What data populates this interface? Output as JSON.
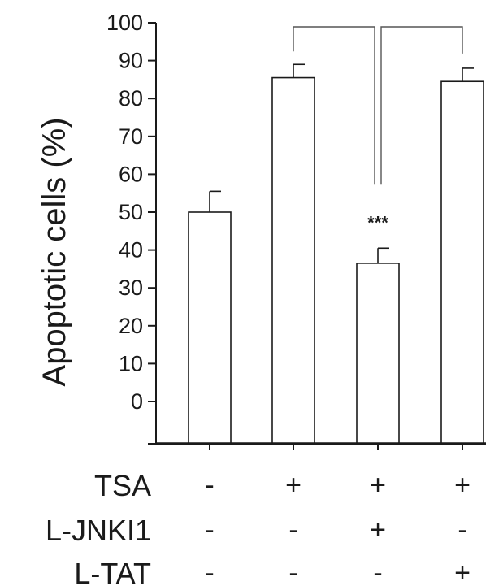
{
  "chart_data": {
    "type": "bar",
    "ylabel": "Apoptotic cells (%)",
    "ylim": [
      0,
      100
    ],
    "yticks": [
      "100",
      "90",
      "80",
      "70",
      "60",
      "50",
      "40",
      "30",
      "20",
      "10",
      "0"
    ],
    "values": [
      50,
      85.5,
      36.5,
      84.5
    ],
    "errors": [
      5.5,
      3.5,
      4,
      3.5
    ],
    "annotation": "***",
    "bar_fill": "#ffffff",
    "bar_stroke": "#1a1a1a"
  },
  "conditions": [
    {
      "label": "TSA",
      "values": [
        "-",
        "+",
        "+",
        "+"
      ]
    },
    {
      "label": "L-JNKI1",
      "values": [
        "-",
        "-",
        "+",
        "-"
      ]
    },
    {
      "label": "L-TAT",
      "values": [
        "-",
        "-",
        "-",
        "+"
      ]
    }
  ]
}
